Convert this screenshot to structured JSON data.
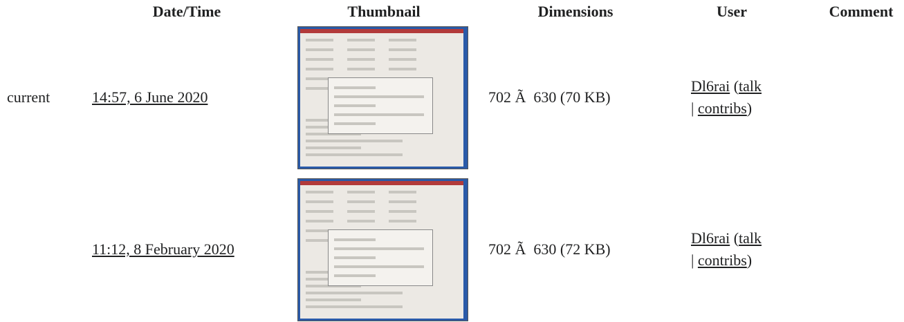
{
  "table": {
    "headers": [
      "Date/Time",
      "Thumbnail",
      "Dimensions",
      "User",
      "Comment"
    ],
    "rows": [
      {
        "status": "current",
        "datetime": "14:57, 6 June 2020",
        "dimensions": "702 Ã  630 (70 KB)",
        "user": "Dl6rai",
        "open": "(",
        "talk": "talk",
        "sep": "|",
        "contribs": "contribs",
        "close": ")"
      },
      {
        "datetime": "11:12, 8 February 2020",
        "dimensions": "702 Ã  630 (72 KB)",
        "user": "Dl6rai",
        "open": "(",
        "talk": "talk",
        "sep": "|",
        "contribs": "contribs",
        "close": ")"
      }
    ]
  }
}
